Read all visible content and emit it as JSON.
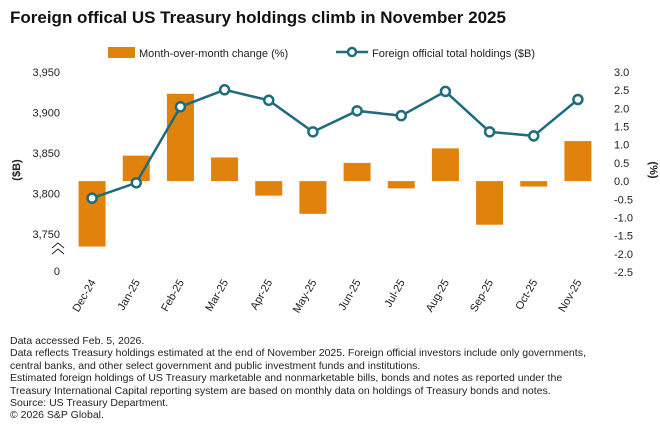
{
  "title": "Foreign offical US Treasury holdings climb in November 2025",
  "colors": {
    "bar": "#e0820c",
    "line": "#1e6c7c",
    "text": "#222222"
  },
  "chart_data": {
    "type": "bar+line",
    "categories": [
      "Dec-24",
      "Jan-25",
      "Feb-25",
      "Mar-25",
      "Apr-25",
      "May-25",
      "Jun-25",
      "Jul-25",
      "Aug-25",
      "Sep-25",
      "Oct-25",
      "Nov-25"
    ],
    "series": [
      {
        "name": "Month-over-month change (%)",
        "type": "bar",
        "axis": "right",
        "values": [
          -1.8,
          0.7,
          2.4,
          0.65,
          -0.4,
          -0.9,
          0.5,
          -0.2,
          0.9,
          -1.2,
          -0.15,
          1.1
        ]
      },
      {
        "name": "Foreign official total holdings ($B)",
        "type": "line",
        "axis": "left",
        "values": [
          3794,
          3813,
          3907,
          3928,
          3915,
          3876,
          3902,
          3896,
          3926,
          3876,
          3871,
          3916
        ]
      }
    ],
    "left_axis": {
      "label": "($B)",
      "ylim": [
        3725,
        3950
      ],
      "ticks": [
        "3,950",
        "3,900",
        "3,850",
        "3,800",
        "3,750"
      ],
      "tick_values": [
        3950,
        3900,
        3850,
        3800,
        3750
      ],
      "break_label": "0"
    },
    "right_axis": {
      "label": "(%)",
      "ylim": [
        -2.5,
        3.0
      ],
      "ticks": [
        "3.0",
        "2.5",
        "2.0",
        "1.5",
        "1.0",
        "0.5",
        "0.0",
        "-0.5",
        "-1.0",
        "-1.5",
        "-2.0",
        "-2.5"
      ],
      "tick_values": [
        3.0,
        2.5,
        2.0,
        1.5,
        1.0,
        0.5,
        0.0,
        -0.5,
        -1.0,
        -1.5,
        -2.0,
        -2.5
      ]
    },
    "legend_position": "top",
    "grid": false
  },
  "notes": [
    "Data accessed Feb. 5, 2026.",
    "Data reflects Treasury holdings estimated at the end of November 2025. Foreign official investors include only governments,",
    "central banks, and other select  government and public investment funds and institutions.",
    "Estimated foreign holdings of US Treasury marketable and nonmarketable bills, bonds and notes as reported under the",
    "Treasury International Capital reporting system are based on monthly data on holdings of Treasury bonds and notes.",
    "Source: US Treasury Department.",
    "© 2026 S&P Global."
  ]
}
